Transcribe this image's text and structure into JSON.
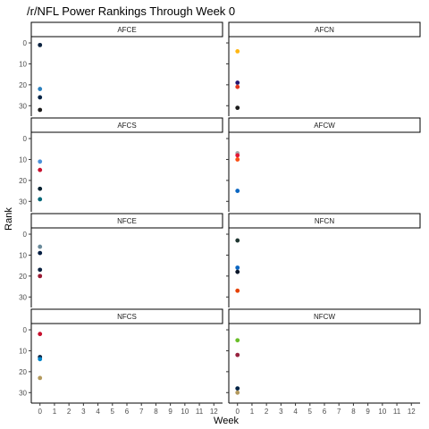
{
  "chart_data": {
    "type": "scatter",
    "title": "/r/NFL Power Rankings Through Week 0",
    "xlabel": "Week",
    "ylabel": "Rank",
    "x_ticks": [
      0,
      1,
      2,
      3,
      4,
      5,
      6,
      7,
      8,
      9,
      10,
      11,
      12
    ],
    "y_ticks": [
      0,
      10,
      20,
      30
    ],
    "xlim": [
      -0.6,
      12.6
    ],
    "ylim_reversed": [
      -3,
      35
    ],
    "grid": false,
    "legend": "none",
    "facets": [
      {
        "name": "AFCE",
        "points": [
          {
            "week": 0,
            "rank": 1,
            "color": "#0b2240"
          },
          {
            "week": 0,
            "rank": 22,
            "color": "#2a7fbd"
          },
          {
            "week": 0,
            "rank": 26,
            "color": "#002244"
          },
          {
            "week": 0,
            "rank": 32,
            "color": "#1b1b1b"
          }
        ]
      },
      {
        "name": "AFCN",
        "points": [
          {
            "week": 0,
            "rank": 4,
            "color": "#ffb612"
          },
          {
            "week": 0,
            "rank": 19,
            "color": "#241773"
          },
          {
            "week": 0,
            "rank": 21,
            "color": "#e3371e"
          },
          {
            "week": 0,
            "rank": 31,
            "color": "#1b1b1b"
          }
        ]
      },
      {
        "name": "AFCS",
        "points": [
          {
            "week": 0,
            "rank": 11,
            "color": "#4b92db"
          },
          {
            "week": 0,
            "rank": 15,
            "color": "#c8102e"
          },
          {
            "week": 0,
            "rank": 24,
            "color": "#03202f"
          },
          {
            "week": 0,
            "rank": 29,
            "color": "#006778"
          }
        ]
      },
      {
        "name": "AFCW",
        "points": [
          {
            "week": 0,
            "rank": 7,
            "color": "#a5acaf"
          },
          {
            "week": 0,
            "rank": 8,
            "color": "#e31837"
          },
          {
            "week": 0,
            "rank": 10,
            "color": "#fb4f14"
          },
          {
            "week": 0,
            "rank": 25,
            "color": "#0a66c2"
          }
        ]
      },
      {
        "name": "NFCE",
        "points": [
          {
            "week": 0,
            "rank": 6,
            "color": "#6a8a9a"
          },
          {
            "week": 0,
            "rank": 9,
            "color": "#041e42"
          },
          {
            "week": 0,
            "rank": 17,
            "color": "#0b2240"
          },
          {
            "week": 0,
            "rank": 20,
            "color": "#9a1a33"
          }
        ]
      },
      {
        "name": "NFCN",
        "points": [
          {
            "week": 0,
            "rank": 3,
            "color": "#203731"
          },
          {
            "week": 0,
            "rank": 16,
            "color": "#0a66c2"
          },
          {
            "week": 0,
            "rank": 18,
            "color": "#0b162a"
          },
          {
            "week": 0,
            "rank": 27,
            "color": "#e64100"
          }
        ]
      },
      {
        "name": "NFCS",
        "points": [
          {
            "week": 0,
            "rank": 2,
            "color": "#c8102e"
          },
          {
            "week": 0,
            "rank": 13,
            "color": "#0b2240"
          },
          {
            "week": 0,
            "rank": 14,
            "color": "#0085ca"
          },
          {
            "week": 0,
            "rank": 23,
            "color": "#b3995d"
          }
        ]
      },
      {
        "name": "NFCW",
        "points": [
          {
            "week": 0,
            "rank": 5,
            "color": "#69be28"
          },
          {
            "week": 0,
            "rank": 12,
            "color": "#97233f"
          },
          {
            "week": 0,
            "rank": 28,
            "color": "#002244"
          },
          {
            "week": 0,
            "rank": 30,
            "color": "#b3995d"
          }
        ]
      }
    ]
  }
}
